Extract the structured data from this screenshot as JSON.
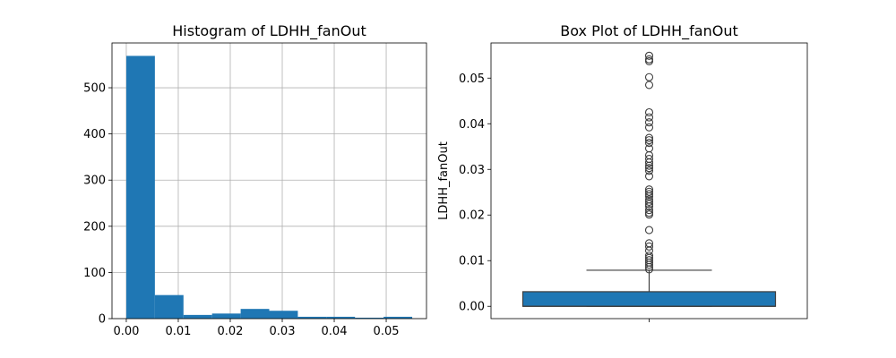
{
  "chart_data": [
    {
      "type": "histogram",
      "title": "Histogram of LDHH_fanOut",
      "xlabel": "",
      "ylabel": "",
      "xlim": [
        -0.00275,
        0.05775
      ],
      "ylim": [
        0,
        597
      ],
      "grid": true,
      "color": "#1f77b4",
      "bins": [
        {
          "x0": 0.0,
          "x1": 0.0055,
          "count": 569
        },
        {
          "x0": 0.0055,
          "x1": 0.011,
          "count": 51
        },
        {
          "x0": 0.011,
          "x1": 0.0165,
          "count": 8
        },
        {
          "x0": 0.0165,
          "x1": 0.022,
          "count": 11
        },
        {
          "x0": 0.022,
          "x1": 0.0275,
          "count": 21
        },
        {
          "x0": 0.0275,
          "x1": 0.033,
          "count": 17
        },
        {
          "x0": 0.033,
          "x1": 0.0385,
          "count": 4
        },
        {
          "x0": 0.0385,
          "x1": 0.044,
          "count": 4
        },
        {
          "x0": 0.044,
          "x1": 0.0495,
          "count": 2
        },
        {
          "x0": 0.0495,
          "x1": 0.055,
          "count": 4
        }
      ],
      "xticks": [
        0.0,
        0.01,
        0.02,
        0.03,
        0.04,
        0.05
      ],
      "xtick_labels": [
        "0.00",
        "0.01",
        "0.02",
        "0.03",
        "0.04",
        "0.05"
      ],
      "yticks": [
        0,
        100,
        200,
        300,
        400,
        500
      ],
      "ytick_labels": [
        "0",
        "100",
        "200",
        "300",
        "400",
        "500"
      ]
    },
    {
      "type": "box",
      "title": "Box Plot of LDHH_fanOut",
      "ylabel": "LDHH_fanOut",
      "xlabel": "",
      "ylim": [
        -0.0027,
        0.0577
      ],
      "grid": false,
      "color": "#1f77b4",
      "stats": {
        "whisker_low": 0.0,
        "q1": 0.0,
        "median": 0.0,
        "q3": 0.0032,
        "whisker_high": 0.0079
      },
      "outliers": [
        0.0081,
        0.0086,
        0.0091,
        0.0096,
        0.0101,
        0.0106,
        0.0111,
        0.0122,
        0.0131,
        0.0138,
        0.0167,
        0.0201,
        0.0205,
        0.0211,
        0.0219,
        0.0224,
        0.0229,
        0.0234,
        0.0241,
        0.0246,
        0.0251,
        0.0256,
        0.0285,
        0.0297,
        0.0303,
        0.0308,
        0.0315,
        0.0323,
        0.0331,
        0.0346,
        0.0358,
        0.0364,
        0.0369,
        0.0392,
        0.0403,
        0.0414,
        0.0425,
        0.0485,
        0.0502,
        0.0537,
        0.0541,
        0.0549
      ],
      "yticks": [
        0.0,
        0.01,
        0.02,
        0.03,
        0.04,
        0.05
      ],
      "ytick_labels": [
        "0.00",
        "0.01",
        "0.02",
        "0.03",
        "0.04",
        "0.05"
      ]
    }
  ]
}
